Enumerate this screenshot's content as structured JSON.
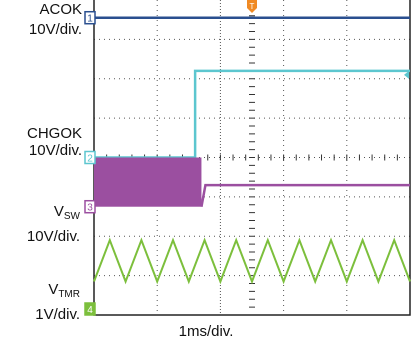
{
  "chart_data": {
    "type": "line",
    "title": "",
    "time_base": "1ms/div.",
    "channels": [
      {
        "id": "1",
        "name": "ACOK",
        "scale": "10V/div.",
        "color": "#2a4f8f",
        "trace": {
          "kind": "constant",
          "level_div": 7.55
        }
      },
      {
        "id": "2",
        "name": "CHGOK",
        "scale": "10V/div.",
        "color": "#5cc6cf",
        "trace": {
          "kind": "step",
          "before_div": 4.0,
          "after_div": 6.2,
          "step_time_div": 1.6
        }
      },
      {
        "id": "3",
        "name_main": "V",
        "name_sub": "SW",
        "scale": "10V/div.",
        "color": "#9b4fa0",
        "trace": {
          "kind": "switching",
          "band_low_div": 2.75,
          "band_high_div": 4.0,
          "stop_time_div": 1.7,
          "after_div": 3.3
        }
      },
      {
        "id": "4",
        "name_main": "V",
        "name_sub": "TMR",
        "scale": "1V/div.",
        "color": "#7cbf3c",
        "trace": {
          "kind": "triangle",
          "low_div": 0.85,
          "high_div": 1.9,
          "period_div": 0.5
        }
      }
    ],
    "trigger_marker": "T",
    "grid": true
  }
}
